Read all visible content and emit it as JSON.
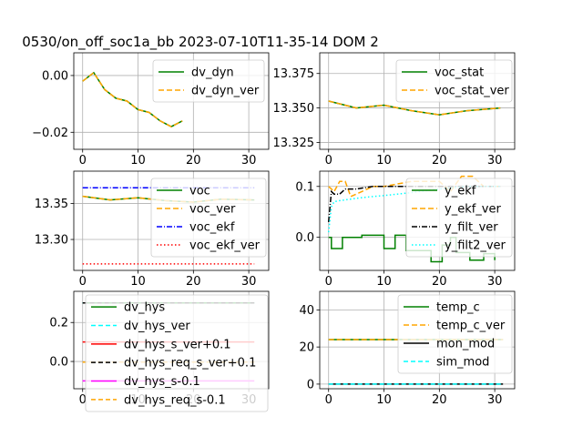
{
  "figure": {
    "suptitle": "0530/on_off_soc1a_bb   2023-07-10T11-35-14 DOM 2"
  },
  "chart_data": [
    {
      "type": "line",
      "id": "dv_dyn",
      "xlim": [
        -1.6,
        33.6
      ],
      "ylim": [
        -0.026,
        0.008
      ],
      "xticks": [
        0,
        10,
        20,
        30
      ],
      "yticks": [
        0.0,
        -0.02
      ],
      "ytick_labels": [
        "0.00",
        "−0.02"
      ],
      "grid": true,
      "legend": "top-right",
      "series": [
        {
          "name": "dv_dyn",
          "color": "#008000",
          "dash": "",
          "x": [
            0,
            2,
            4,
            6,
            8,
            10,
            12,
            14,
            16,
            18
          ],
          "y": [
            -0.002,
            0.001,
            -0.005,
            -0.008,
            -0.009,
            -0.012,
            -0.013,
            -0.016,
            -0.018,
            -0.016
          ]
        },
        {
          "name": "dv_dyn_ver",
          "color": "#ffa500",
          "dash": "6,3",
          "x": [
            0,
            2,
            4,
            6,
            8,
            10,
            12,
            14,
            16,
            18
          ],
          "y": [
            -0.002,
            0.001,
            -0.005,
            -0.008,
            -0.009,
            -0.012,
            -0.013,
            -0.016,
            -0.018,
            -0.016
          ]
        }
      ]
    },
    {
      "type": "line",
      "id": "voc_stat",
      "xlim": [
        -1.6,
        33.6
      ],
      "ylim": [
        13.32,
        13.39
      ],
      "xticks": [
        0,
        10,
        20,
        30
      ],
      "yticks": [
        13.375,
        13.35,
        13.325
      ],
      "ytick_labels": [
        "13.375",
        "13.350",
        "13.325"
      ],
      "grid": true,
      "legend": "top-right",
      "series": [
        {
          "name": "voc_stat",
          "color": "#008000",
          "dash": "",
          "x": [
            0,
            5,
            10,
            15,
            20,
            25,
            31
          ],
          "y": [
            13.355,
            13.35,
            13.352,
            13.348,
            13.345,
            13.348,
            13.35
          ]
        },
        {
          "name": "voc_stat_ver",
          "color": "#ffa500",
          "dash": "6,3",
          "x": [
            0,
            5,
            10,
            15,
            20,
            25,
            31
          ],
          "y": [
            13.355,
            13.35,
            13.352,
            13.348,
            13.345,
            13.348,
            13.35
          ]
        }
      ]
    },
    {
      "type": "line",
      "id": "voc",
      "xlim": [
        -1.6,
        33.6
      ],
      "ylim": [
        13.257,
        13.395
      ],
      "xticks": [
        0,
        10,
        20,
        30
      ],
      "yticks": [
        13.35,
        13.3
      ],
      "ytick_labels": [
        "13.35",
        "13.30"
      ],
      "grid": true,
      "legend": "top-right",
      "series": [
        {
          "name": "voc",
          "color": "#008000",
          "dash": "",
          "x": [
            0,
            5,
            10,
            15,
            20,
            25,
            31
          ],
          "y": [
            13.36,
            13.355,
            13.358,
            13.354,
            13.352,
            13.356,
            13.355
          ]
        },
        {
          "name": "voc_ver",
          "color": "#ffa500",
          "dash": "6,3",
          "x": [
            0,
            5,
            10,
            15,
            20,
            25,
            31
          ],
          "y": [
            13.36,
            13.355,
            13.358,
            13.354,
            13.352,
            13.356,
            13.355
          ]
        },
        {
          "name": "voc_ekf",
          "color": "#0000ff",
          "dash": "6,2,1,2",
          "x": [
            0,
            31
          ],
          "y": [
            13.372,
            13.372
          ]
        },
        {
          "name": "voc_ekf_ver",
          "color": "#ff0000",
          "dash": "1.5,2.5",
          "x": [
            0,
            31
          ],
          "y": [
            13.266,
            13.266
          ]
        }
      ]
    },
    {
      "type": "line",
      "id": "y_ekf",
      "xlim": [
        -1.6,
        33.6
      ],
      "ylim": [
        -0.065,
        0.13
      ],
      "xticks": [
        0,
        10,
        20,
        30
      ],
      "yticks": [
        0.1,
        0.0
      ],
      "ytick_labels": [
        "0.1",
        "0.0"
      ],
      "grid": true,
      "legend": "top-right",
      "series": [
        {
          "name": "y_ekf",
          "color": "#008000",
          "dash": "",
          "x": [
            0,
            0.5,
            0.5,
            2.5,
            2.5,
            6,
            6,
            10,
            10,
            12,
            12,
            14,
            14,
            18.5,
            18.5,
            20.5,
            20.5,
            22,
            22,
            23,
            23,
            25.5,
            25.5,
            28,
            28,
            30,
            30
          ],
          "y": [
            0,
            0,
            -0.022,
            -0.022,
            0,
            0,
            0.004,
            0.004,
            -0.022,
            -0.022,
            0.004,
            0.004,
            -0.026,
            -0.026,
            -0.048,
            -0.048,
            -0.015,
            -0.015,
            0,
            0,
            -0.03,
            -0.03,
            -0.045,
            -0.045,
            -0.032,
            -0.032,
            -0.045
          ]
        },
        {
          "name": "y_ekf_ver",
          "color": "#ffa500",
          "dash": "6,3",
          "x": [
            0,
            1,
            2,
            3,
            4,
            6,
            8,
            10,
            15,
            20,
            22,
            24,
            26,
            28,
            31
          ],
          "y": [
            0.1,
            0.09,
            0.11,
            0.11,
            0.08,
            0.09,
            0.1,
            0.1,
            0.11,
            0.11,
            0.09,
            0.12,
            0.12,
            0.1,
            0.1
          ]
        },
        {
          "name": "y_filt_ver",
          "color": "#000000",
          "dash": "6,2,1,2",
          "x": [
            0,
            0.5,
            1,
            2,
            3,
            5,
            8,
            10,
            15,
            20,
            25,
            31
          ],
          "y": [
            0.03,
            0.09,
            0.085,
            0.085,
            0.095,
            0.095,
            0.1,
            0.1,
            0.1,
            0.1,
            0.1,
            0.1
          ]
        },
        {
          "name": "y_filt2_ver",
          "color": "#00ffff",
          "dash": "1.5,2.5",
          "x": [
            0,
            0.5,
            1,
            2,
            4,
            6,
            8,
            10,
            15,
            20,
            25,
            31
          ],
          "y": [
            0.01,
            0.06,
            0.07,
            0.072,
            0.075,
            0.078,
            0.08,
            0.082,
            0.088,
            0.095,
            0.1,
            0.1
          ]
        }
      ]
    },
    {
      "type": "line",
      "id": "dv_hys",
      "xlim": [
        -1.6,
        33.6
      ],
      "ylim": [
        -0.14,
        0.36
      ],
      "xticks": [
        0,
        10,
        20,
        30
      ],
      "yticks": [
        0.2,
        0.0
      ],
      "ytick_labels": [
        "0.2",
        "0.0"
      ],
      "grid": true,
      "legend": "lower-center",
      "series": [
        {
          "name": "dv_hys",
          "color": "#008000",
          "dash": "",
          "x": [
            0,
            31
          ],
          "y": [
            0.3,
            0.3
          ]
        },
        {
          "name": "dv_hys_ver",
          "color": "#00ffff",
          "dash": "5,3",
          "x": [
            0,
            31
          ],
          "y": [
            0.3,
            0.3
          ]
        },
        {
          "name": "dv_hys_s_ver+0.1",
          "color": "#ff0000",
          "dash": "",
          "x": [
            0,
            31
          ],
          "y": [
            0.1,
            0.1
          ]
        },
        {
          "name": "dv_hys_req_s_ver+0.1",
          "color": "#000000",
          "dash": "5,3",
          "x": [
            0,
            31
          ],
          "y": [
            0.3,
            0.3
          ]
        },
        {
          "name": "dv_hys_s-0.1",
          "color": "#ff00ff",
          "dash": "",
          "x": [
            0,
            31
          ],
          "y": [
            -0.1,
            -0.1
          ]
        },
        {
          "name": "dv_hys_req_s-0.1",
          "color": "#ffa500",
          "dash": "5,3",
          "x": [
            0,
            31
          ],
          "y": [
            -0.003,
            -0.003
          ]
        }
      ]
    },
    {
      "type": "line",
      "id": "temp_c",
      "xlim": [
        -1.6,
        33.6
      ],
      "ylim": [
        -2.5,
        50
      ],
      "xticks": [
        0,
        10,
        20,
        30
      ],
      "yticks": [
        40,
        20,
        0
      ],
      "ytick_labels": [
        "40",
        "20",
        "0"
      ],
      "grid": true,
      "legend": "top-right",
      "series": [
        {
          "name": "temp_c",
          "color": "#008000",
          "dash": "",
          "x": [
            0,
            31.5
          ],
          "y": [
            24,
            24
          ]
        },
        {
          "name": "temp_c_ver",
          "color": "#ffa500",
          "dash": "6,3",
          "x": [
            0,
            31.5
          ],
          "y": [
            24,
            24
          ]
        },
        {
          "name": "mon_mod",
          "color": "#000000",
          "dash": "",
          "x": [
            0,
            31.5
          ],
          "y": [
            0,
            0
          ]
        },
        {
          "name": "sim_mod",
          "color": "#00ffff",
          "dash": "5,3",
          "x": [
            0,
            31.5
          ],
          "y": [
            0,
            0
          ]
        }
      ]
    }
  ]
}
